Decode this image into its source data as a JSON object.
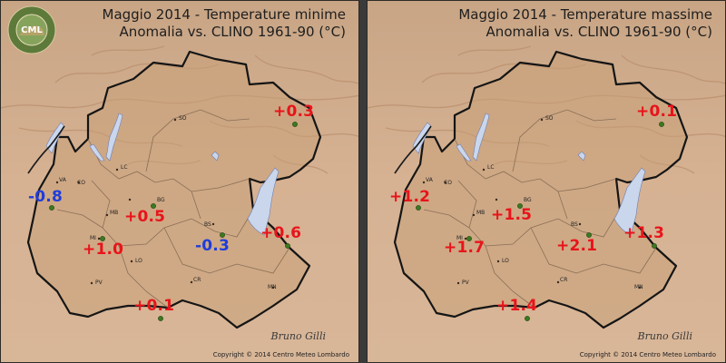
{
  "logo": {
    "text": "CML",
    "ring_text": "CENTRO METEO LOMBARDO"
  },
  "copyright": "Copyright © 2014 Centro Meteo Lombardo",
  "signature": "Bruno Gilli",
  "cities": [
    {
      "id": "so",
      "label": "SO"
    },
    {
      "id": "va",
      "label": "VA"
    },
    {
      "id": "co",
      "label": "CO"
    },
    {
      "id": "lc",
      "label": "LC"
    },
    {
      "id": "bg",
      "label": "BG"
    },
    {
      "id": "mb",
      "label": "MB"
    },
    {
      "id": "bs",
      "label": "BS"
    },
    {
      "id": "mi",
      "label": "MI"
    },
    {
      "id": "lo",
      "label": "LO"
    },
    {
      "id": "pv",
      "label": "PV"
    },
    {
      "id": "cr",
      "label": "CR"
    },
    {
      "id": "mn",
      "label": "MN"
    }
  ],
  "panels": [
    {
      "id": "min",
      "title": "Maggio 2014 - Temperature minime",
      "subtitle": "Anomalia vs. CLINO 1961-90 (°C)",
      "values": [
        {
          "station": "sondrio-east",
          "text": "+0.3",
          "sign": "pos"
        },
        {
          "station": "varese",
          "text": "-0.8",
          "sign": "neg"
        },
        {
          "station": "bergamo",
          "text": "+0.5",
          "sign": "pos"
        },
        {
          "station": "brescia",
          "text": "-0.3",
          "sign": "neg"
        },
        {
          "station": "garda",
          "text": "+0.6",
          "sign": "pos"
        },
        {
          "station": "milano",
          "text": "+1.0",
          "sign": "pos"
        },
        {
          "station": "cremona",
          "text": "+0.1",
          "sign": "pos"
        }
      ]
    },
    {
      "id": "max",
      "title": "Maggio 2014 - Temperature massime",
      "subtitle": "Anomalia vs. CLINO 1961-90 (°C)",
      "values": [
        {
          "station": "sondrio-east",
          "text": "+0.1",
          "sign": "pos"
        },
        {
          "station": "varese",
          "text": "+1.2",
          "sign": "pos"
        },
        {
          "station": "bergamo",
          "text": "+1.5",
          "sign": "pos"
        },
        {
          "station": "brescia",
          "text": "+2.1",
          "sign": "pos"
        },
        {
          "station": "garda",
          "text": "+1.3",
          "sign": "pos"
        },
        {
          "station": "milano",
          "text": "+1.7",
          "sign": "pos"
        },
        {
          "station": "cremona",
          "text": "+1.4",
          "sign": "pos"
        }
      ]
    }
  ]
}
